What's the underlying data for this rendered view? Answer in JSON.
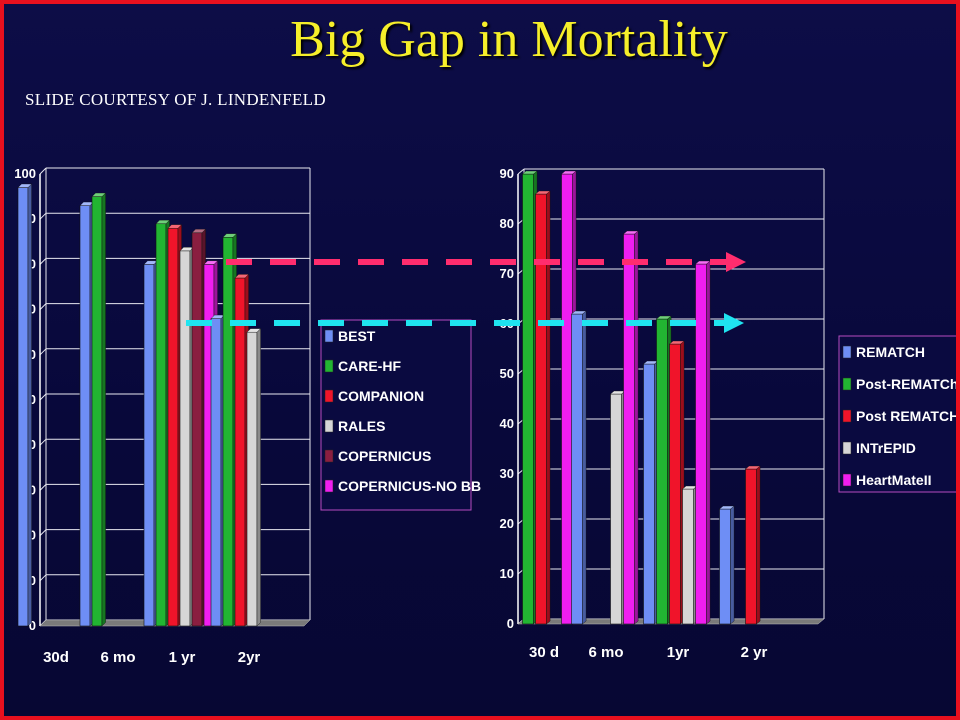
{
  "title": "Big Gap in Mortality",
  "subtitle": "SLIDE COURTESY OF J. LINDENFELD",
  "colors": {
    "background": "#0a0a40",
    "border": "#e8101e",
    "title": "#f6ef2a",
    "pink_arrow": "#ff2d6e",
    "cyan_arrow": "#1fe4f0"
  },
  "chart_data": [
    {
      "type": "bar",
      "variant": "3d-clustered",
      "yticks": [
        "0",
        "10",
        "20",
        "30",
        "40",
        "50",
        "60",
        "70",
        "80",
        "90",
        "100"
      ],
      "ylim": [
        0,
        100
      ],
      "grid": true,
      "legend_position": "right-inside",
      "categories": [
        "30d",
        "6 mo",
        "1 yr",
        "2yr"
      ],
      "series": [
        {
          "name": "BEST",
          "color": "#6e8ef5",
          "values": [
            97,
            93,
            80,
            68
          ]
        },
        {
          "name": "CARE-HF",
          "color": "#22b532",
          "values": [
            null,
            95,
            89,
            86
          ]
        },
        {
          "name": "COMPANION",
          "color": "#f0142a",
          "values": [
            null,
            null,
            88,
            77
          ]
        },
        {
          "name": "RALES",
          "color": "#d6d6d6",
          "values": [
            null,
            null,
            83,
            65
          ]
        },
        {
          "name": "COPERNICUS",
          "color": "#8a1e40",
          "values": [
            null,
            null,
            87,
            null
          ]
        },
        {
          "name": "COPERNICUS-NO BB",
          "color": "#f01ef0",
          "values": [
            null,
            null,
            80,
            null
          ]
        }
      ]
    },
    {
      "type": "bar",
      "variant": "3d-clustered",
      "yticks": [
        "0",
        "10",
        "20",
        "30",
        "40",
        "50",
        "60",
        "70",
        "80",
        "90"
      ],
      "ylim": [
        0,
        90
      ],
      "grid": true,
      "legend_position": "right-outside",
      "categories": [
        "30 d",
        "6 mo",
        "1yr",
        "2 yr"
      ],
      "series": [
        {
          "name": "REMATCH",
          "color": "#6e8ef5",
          "values": [
            null,
            62,
            52,
            23
          ]
        },
        {
          "name": "Post-REMATCh",
          "color": "#22b532",
          "values": [
            90,
            null,
            61,
            null
          ]
        },
        {
          "name": "Post REMATCH",
          "color": "#f0142a",
          "values": [
            86,
            null,
            56,
            31
          ]
        },
        {
          "name": "INTrEPID",
          "color": "#d6d6d6",
          "values": [
            null,
            46,
            27,
            null
          ]
        },
        {
          "name": "HeartMateII",
          "color": "#f01ef0",
          "values": [
            90,
            78,
            72,
            null
          ]
        }
      ]
    }
  ],
  "arrows": [
    {
      "name": "pink",
      "from_value": 80,
      "to_value": 72
    },
    {
      "name": "cyan",
      "from_value": 67,
      "to_value": 60
    }
  ]
}
